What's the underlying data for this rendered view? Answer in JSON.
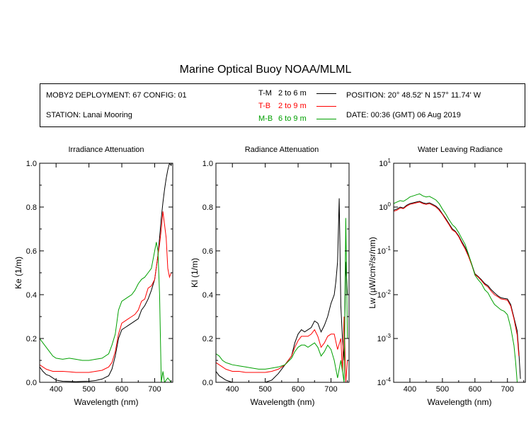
{
  "header": {
    "title": "Marine Optical Buoy NOAA/MLML",
    "deployment": "MOBY2 DEPLOYMENT: 67 CONFIG: 01",
    "station": "STATION: Lanai Mooring",
    "position": "POSITION: 20° 48.52' N   157° 11.74' W",
    "date": "DATE: 00:36 (GMT) 06 Aug 2019",
    "legend": [
      {
        "name": "T-M",
        "range": "2 to 6  m",
        "color": "#000000"
      },
      {
        "name": "T-B",
        "range": "2 to 9  m",
        "color": "#ff0000"
      },
      {
        "name": "M-B",
        "range": "6 to 9  m",
        "color": "#00a000"
      }
    ]
  },
  "chart_data": [
    {
      "type": "line",
      "title": "Irradiance Attenuation",
      "xlabel": "Wavelength (nm)",
      "ylabel": "Ke  (1/m)",
      "xlim": [
        350,
        755
      ],
      "ylim": [
        0,
        1.0
      ],
      "xticks": [
        "400",
        "500",
        "600",
        "700"
      ],
      "yticks": [
        "0.0",
        "0.2",
        "0.4",
        "0.6",
        "0.8",
        "1.0"
      ],
      "series": [
        {
          "name": "T-M",
          "color": "#000000",
          "x": [
            350,
            360,
            370,
            380,
            390,
            400,
            420,
            440,
            460,
            480,
            500,
            520,
            540,
            560,
            570,
            580,
            590,
            600,
            610,
            620,
            630,
            640,
            650,
            660,
            670,
            680,
            690,
            700,
            710,
            715,
            720,
            725,
            730,
            735,
            740,
            745,
            750,
            752
          ],
          "y": [
            0.07,
            0.05,
            0.035,
            0.03,
            0.02,
            0.01,
            0.005,
            0.004,
            0.003,
            0.004,
            0.005,
            0.008,
            0.015,
            0.03,
            0.06,
            0.12,
            0.2,
            0.24,
            0.25,
            0.26,
            0.27,
            0.28,
            0.29,
            0.33,
            0.35,
            0.38,
            0.42,
            0.47,
            0.58,
            0.66,
            0.75,
            0.82,
            0.88,
            0.93,
            0.97,
            1.0,
            0.99,
            1.0
          ]
        },
        {
          "name": "T-B",
          "color": "#ff0000",
          "x": [
            350,
            360,
            370,
            380,
            390,
            400,
            420,
            440,
            460,
            480,
            500,
            520,
            540,
            560,
            570,
            580,
            590,
            600,
            610,
            620,
            630,
            640,
            650,
            660,
            670,
            680,
            690,
            700,
            710,
            715,
            720,
            725,
            730,
            735,
            740,
            745,
            750
          ],
          "y": [
            0.08,
            0.07,
            0.06,
            0.055,
            0.05,
            0.05,
            0.05,
            0.048,
            0.045,
            0.045,
            0.045,
            0.05,
            0.055,
            0.07,
            0.09,
            0.14,
            0.22,
            0.27,
            0.28,
            0.29,
            0.3,
            0.31,
            0.33,
            0.37,
            0.38,
            0.43,
            0.44,
            0.47,
            0.58,
            0.63,
            0.7,
            0.78,
            0.72,
            0.66,
            0.52,
            0.48,
            0.5
          ]
        },
        {
          "name": "M-B",
          "color": "#00a000",
          "x": [
            350,
            360,
            370,
            380,
            390,
            400,
            420,
            440,
            460,
            480,
            500,
            520,
            540,
            560,
            570,
            580,
            590,
            600,
            610,
            620,
            630,
            640,
            650,
            660,
            670,
            680,
            690,
            700,
            705,
            710,
            715,
            720,
            725,
            730,
            740,
            750
          ],
          "y": [
            0.2,
            0.18,
            0.16,
            0.14,
            0.12,
            0.11,
            0.105,
            0.11,
            0.105,
            0.1,
            0.1,
            0.105,
            0.11,
            0.13,
            0.17,
            0.22,
            0.33,
            0.37,
            0.38,
            0.39,
            0.4,
            0.42,
            0.45,
            0.47,
            0.48,
            0.5,
            0.52,
            0.6,
            0.64,
            0.6,
            0.4,
            0.0,
            0.05,
            0.0,
            0.02,
            0.0
          ]
        }
      ]
    },
    {
      "type": "line",
      "title": "Radiance Attenuation",
      "xlabel": "Wavelength (nm)",
      "ylabel": "Kl  (1/m)",
      "xlim": [
        350,
        755
      ],
      "ylim": [
        0,
        1.0
      ],
      "xticks": [
        "400",
        "500",
        "600",
        "700"
      ],
      "yticks": [
        "0.0",
        "0.2",
        "0.4",
        "0.6",
        "0.8",
        "1.0"
      ],
      "series": [
        {
          "name": "T-M",
          "color": "#000000",
          "x": [
            350,
            360,
            370,
            380,
            390,
            400,
            420,
            440,
            460,
            480,
            500,
            520,
            540,
            560,
            580,
            590,
            600,
            610,
            620,
            630,
            640,
            650,
            660,
            670,
            680,
            690,
            700,
            710,
            715,
            720,
            725,
            730,
            735,
            740,
            745,
            750
          ],
          "y": [
            0.05,
            0.03,
            0.02,
            0.01,
            0.005,
            0.0,
            0.0,
            0.0,
            0.0,
            0.0,
            0.0,
            0.01,
            0.04,
            0.08,
            0.12,
            0.18,
            0.22,
            0.24,
            0.23,
            0.24,
            0.25,
            0.28,
            0.27,
            0.23,
            0.26,
            0.3,
            0.36,
            0.4,
            0.46,
            0.55,
            0.84,
            0.35,
            0.2,
            0.1,
            0.55,
            0.4
          ]
        },
        {
          "name": "T-B",
          "color": "#ff0000",
          "x": [
            350,
            360,
            370,
            380,
            390,
            400,
            420,
            440,
            460,
            480,
            500,
            520,
            540,
            560,
            580,
            590,
            600,
            610,
            620,
            630,
            640,
            650,
            660,
            670,
            680,
            690,
            700,
            710,
            720,
            730,
            735,
            740,
            745,
            750
          ],
          "y": [
            0.09,
            0.08,
            0.07,
            0.06,
            0.055,
            0.05,
            0.05,
            0.045,
            0.045,
            0.045,
            0.045,
            0.05,
            0.06,
            0.08,
            0.12,
            0.16,
            0.19,
            0.21,
            0.21,
            0.21,
            0.22,
            0.24,
            0.21,
            0.16,
            0.18,
            0.21,
            0.22,
            0.22,
            0.15,
            0.2,
            0.05,
            0.3,
            0.0,
            0.1
          ]
        },
        {
          "name": "M-B",
          "color": "#00a000",
          "x": [
            350,
            360,
            370,
            380,
            390,
            400,
            420,
            440,
            460,
            480,
            500,
            520,
            540,
            560,
            580,
            590,
            600,
            610,
            620,
            630,
            640,
            650,
            660,
            670,
            680,
            690,
            700,
            710,
            720,
            730,
            740,
            745,
            750
          ],
          "y": [
            0.13,
            0.12,
            0.1,
            0.09,
            0.085,
            0.08,
            0.075,
            0.07,
            0.065,
            0.06,
            0.06,
            0.065,
            0.07,
            0.08,
            0.11,
            0.14,
            0.16,
            0.17,
            0.17,
            0.16,
            0.17,
            0.18,
            0.16,
            0.12,
            0.14,
            0.17,
            0.15,
            0.1,
            0.02,
            0.1,
            0.0,
            0.75,
            0.2
          ]
        }
      ]
    },
    {
      "type": "line",
      "title": "Water Leaving Radiance",
      "xlabel": "Wavelength (nm)",
      "ylabel": "Lw  (µW/cm²/sr/nm)",
      "xlim": [
        350,
        755
      ],
      "ylim": [
        0.0001,
        10
      ],
      "log_y": true,
      "xticks": [
        "400",
        "500",
        "600",
        "700"
      ],
      "yticks": [
        {
          "base": "10",
          "exp": "1"
        },
        {
          "base": "10",
          "exp": "0"
        },
        {
          "base": "10",
          "exp": "-1"
        },
        {
          "base": "10",
          "exp": "-2"
        },
        {
          "base": "10",
          "exp": "-3"
        },
        {
          "base": "10",
          "exp": "-4"
        }
      ],
      "series": [
        {
          "name": "T-M",
          "color": "#000000",
          "x": [
            350,
            360,
            370,
            380,
            390,
            400,
            410,
            420,
            430,
            440,
            450,
            460,
            470,
            480,
            490,
            500,
            510,
            520,
            530,
            540,
            550,
            560,
            570,
            580,
            590,
            600,
            610,
            620,
            630,
            640,
            650,
            660,
            670,
            680,
            690,
            700,
            710,
            720,
            730,
            735,
            740
          ],
          "y": [
            0.85,
            0.9,
            1.0,
            0.95,
            1.1,
            1.2,
            1.25,
            1.3,
            1.35,
            1.25,
            1.2,
            1.25,
            1.15,
            1.05,
            0.9,
            0.7,
            0.55,
            0.42,
            0.32,
            0.28,
            0.22,
            0.16,
            0.12,
            0.08,
            0.05,
            0.03,
            0.026,
            0.022,
            0.018,
            0.016,
            0.013,
            0.011,
            0.0095,
            0.0085,
            0.0082,
            0.008,
            0.006,
            0.003,
            0.0015,
            0.0005,
            0.00012
          ]
        },
        {
          "name": "T-B",
          "color": "#ff0000",
          "x": [
            350,
            360,
            370,
            380,
            390,
            400,
            410,
            420,
            430,
            440,
            450,
            460,
            470,
            480,
            490,
            500,
            510,
            520,
            530,
            540,
            550,
            560,
            570,
            580,
            590,
            600,
            610,
            620,
            630,
            640,
            650,
            660,
            670,
            680,
            690,
            700,
            710,
            720,
            730,
            735
          ],
          "y": [
            0.8,
            0.85,
            0.95,
            0.92,
            1.05,
            1.15,
            1.2,
            1.25,
            1.3,
            1.2,
            1.15,
            1.2,
            1.1,
            1.0,
            0.85,
            0.68,
            0.52,
            0.4,
            0.3,
            0.27,
            0.21,
            0.15,
            0.11,
            0.075,
            0.048,
            0.029,
            0.025,
            0.021,
            0.017,
            0.015,
            0.012,
            0.01,
            0.009,
            0.008,
            0.0078,
            0.0075,
            0.0055,
            0.0028,
            0.0012,
            0.0004
          ]
        },
        {
          "name": "M-B",
          "color": "#00a000",
          "x": [
            350,
            360,
            370,
            380,
            390,
            400,
            410,
            420,
            430,
            440,
            450,
            460,
            470,
            480,
            490,
            500,
            510,
            520,
            530,
            540,
            550,
            560,
            570,
            580,
            590,
            600,
            610,
            620,
            630,
            640,
            650,
            660,
            670,
            680,
            690,
            700,
            710,
            720,
            725,
            730
          ],
          "y": [
            1.2,
            1.3,
            1.4,
            1.35,
            1.5,
            1.7,
            1.8,
            1.9,
            2.0,
            1.8,
            1.7,
            1.75,
            1.6,
            1.45,
            1.2,
            0.9,
            0.7,
            0.52,
            0.4,
            0.34,
            0.26,
            0.19,
            0.14,
            0.085,
            0.05,
            0.028,
            0.022,
            0.018,
            0.013,
            0.011,
            0.008,
            0.006,
            0.0052,
            0.0045,
            0.0042,
            0.0035,
            0.0018,
            0.0007,
            0.0003,
            0.0001
          ]
        }
      ]
    }
  ]
}
